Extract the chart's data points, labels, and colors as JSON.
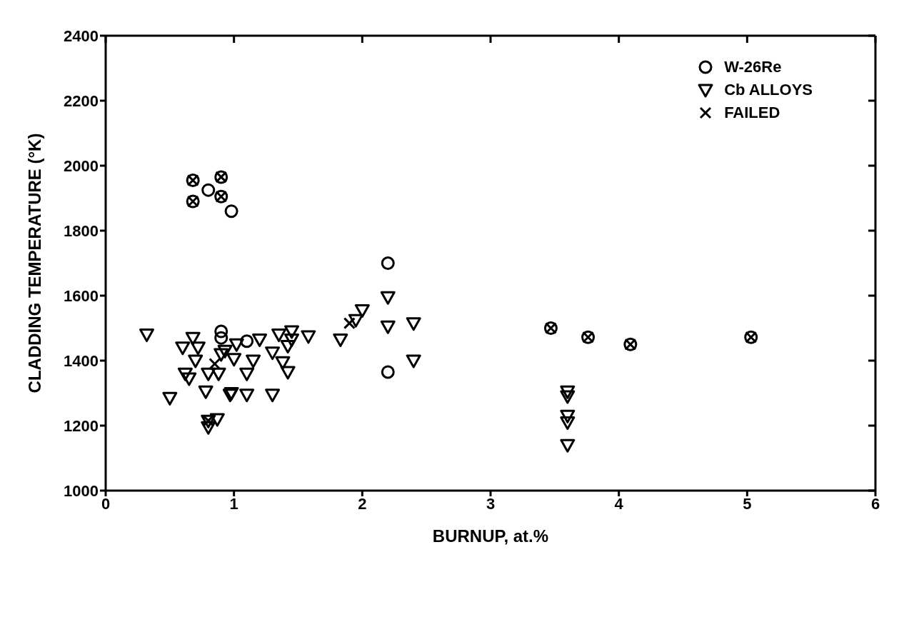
{
  "chart_data": {
    "type": "scatter",
    "xlabel": "BURNUP, at.%",
    "ylabel": "CLADDING TEMPERATURE (°K)",
    "xlim": [
      0,
      6
    ],
    "xticks": [
      0,
      1,
      2,
      3,
      4,
      5,
      6
    ],
    "ylim": [
      1000,
      2400
    ],
    "yticks": [
      1000,
      1200,
      1400,
      1600,
      1800,
      2000,
      2200,
      2400
    ],
    "legend": "top right",
    "series": [
      {
        "name": "W-26Re",
        "color": "#000000",
        "marker": "circle",
        "x": [
          0.68,
          0.8,
          0.9,
          0.68,
          0.9,
          0.98,
          0.9,
          0.9,
          1.1,
          2.2,
          2.2,
          3.47,
          3.76,
          4.09,
          5.03
        ],
        "values": [
          1955,
          1925,
          1965,
          1890,
          1905,
          1860,
          1490,
          1470,
          1460,
          1700,
          1365,
          1500,
          1472,
          1450,
          1472
        ]
      },
      {
        "name": "Cb ALLOYS",
        "color": "#000000",
        "marker": "triangle",
        "x": [
          0.32,
          0.5,
          0.6,
          0.62,
          0.65,
          0.68,
          0.7,
          0.72,
          0.78,
          0.8,
          0.8,
          0.8,
          0.87,
          0.88,
          0.9,
          0.93,
          0.97,
          0.98,
          1.0,
          1.02,
          1.1,
          1.1,
          1.15,
          1.2,
          1.3,
          1.3,
          1.35,
          1.38,
          1.42,
          1.42,
          1.45,
          1.45,
          1.58,
          1.83,
          1.95,
          2.0,
          2.2,
          2.2,
          2.4,
          2.4,
          3.6,
          3.6,
          3.6,
          3.6,
          3.6
        ],
        "values": [
          1480,
          1285,
          1440,
          1360,
          1345,
          1470,
          1400,
          1440,
          1305,
          1360,
          1215,
          1195,
          1220,
          1360,
          1420,
          1430,
          1295,
          1300,
          1405,
          1450,
          1360,
          1295,
          1400,
          1465,
          1295,
          1425,
          1480,
          1395,
          1445,
          1365,
          1490,
          1465,
          1475,
          1465,
          1525,
          1555,
          1595,
          1505,
          1515,
          1400,
          1305,
          1290,
          1230,
          1210,
          1140
        ]
      },
      {
        "name": "FAILED",
        "color": "#000000",
        "marker": "cross",
        "x": [
          0.68,
          0.9,
          0.68,
          0.9,
          0.85,
          0.8,
          1.9,
          3.47,
          3.76,
          4.09,
          5.03
        ],
        "values": [
          1955,
          1965,
          1890,
          1905,
          1390,
          1215,
          1515,
          1500,
          1472,
          1450,
          1472
        ]
      }
    ]
  }
}
